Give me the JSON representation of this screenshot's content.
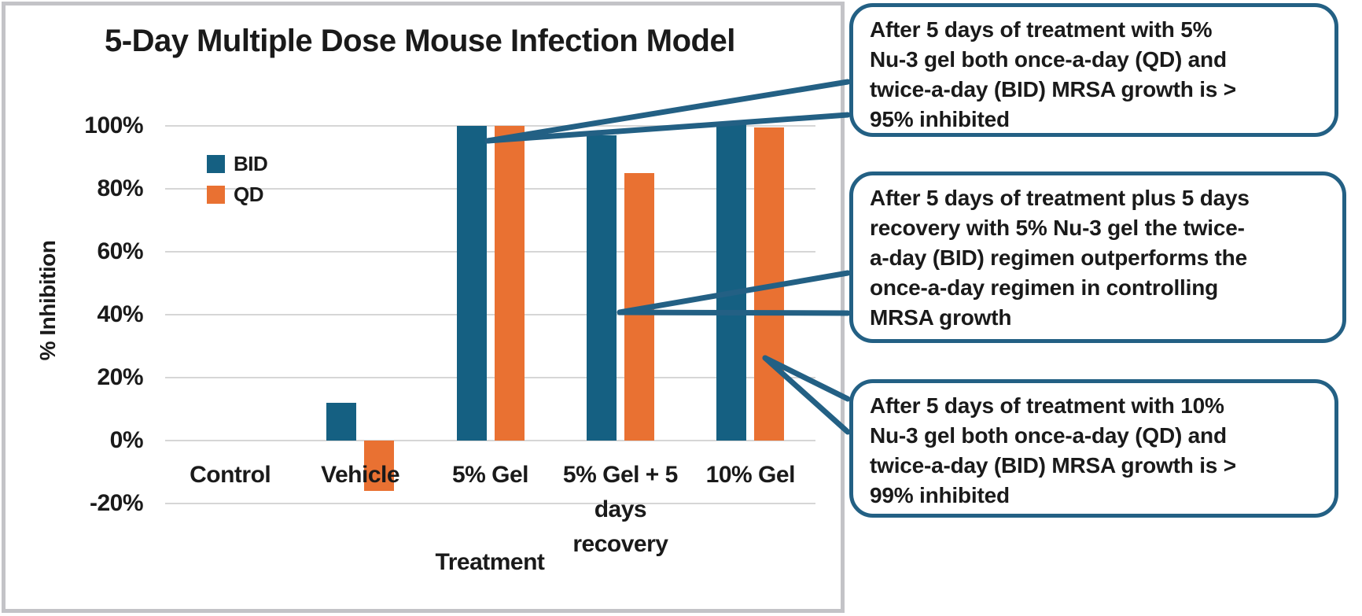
{
  "chart_data": {
    "type": "bar",
    "title": "5-Day Multiple Dose Mouse Infection Model",
    "xlabel": "Treatment",
    "ylabel": "% Inhibition",
    "categories": [
      "Control",
      "Vehicle",
      "5% Gel",
      "5% Gel + 5 days recovery",
      "10% Gel"
    ],
    "category_label_lines": [
      [
        "Control"
      ],
      [
        "Vehicle"
      ],
      [
        "5% Gel"
      ],
      [
        "5% Gel + 5",
        "days",
        "recovery"
      ],
      [
        "10% Gel"
      ]
    ],
    "series": [
      {
        "name": "BID",
        "color": "#156082",
        "values": [
          0,
          12,
          100,
          97,
          101
        ]
      },
      {
        "name": "QD",
        "color": "#E97132",
        "values": [
          0,
          -16,
          100,
          85,
          99.5
        ]
      }
    ],
    "ylim": [
      -20,
      100
    ],
    "yticks": [
      100,
      80,
      60,
      40,
      20,
      0,
      -20
    ],
    "ytick_suffix": "%",
    "grid": true,
    "legend_position": "upper-left-inside"
  },
  "legend": {
    "items": [
      {
        "label": "BID",
        "color": "#156082"
      },
      {
        "label": "QD",
        "color": "#E97132"
      }
    ]
  },
  "callouts": [
    {
      "lines": [
        "After 5 days of treatment with 5%",
        "Nu-3 gel both once-a-day (QD) and",
        "twice-a-day (BID) MRSA growth is >",
        "95% inhibited"
      ]
    },
    {
      "lines": [
        "After 5 days of treatment plus 5 days",
        "recovery with 5% Nu-3 gel the twice-",
        "a-day (BID) regimen outperforms the",
        "once-a-day regimen in controlling",
        "MRSA growth"
      ]
    },
    {
      "lines": [
        "After 5 days of treatment with 10%",
        "Nu-3 gel both once-a-day (QD) and",
        "twice-a-day (BID) MRSA growth is >",
        "99% inhibited"
      ]
    }
  ],
  "colors": {
    "bid_bar": "#156082",
    "qd_bar": "#E97132",
    "callout_border": "#236084",
    "leader_line": "#236084",
    "gridline": "#D6D6D6",
    "frame_border": "#C3C3C7",
    "text": "#1A1A1A"
  }
}
